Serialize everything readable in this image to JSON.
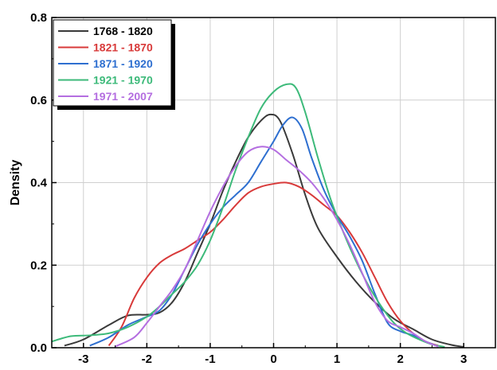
{
  "chart_data": {
    "type": "line",
    "ylabel": "Density",
    "xlim": [
      -3.5,
      3.5
    ],
    "ylim": [
      0,
      0.8
    ],
    "x_ticks": [
      "-3",
      "-2",
      "-1",
      "0",
      "1",
      "2",
      "3"
    ],
    "y_ticks": [
      "0.0",
      "0.2",
      "0.4",
      "0.6",
      "0.8"
    ],
    "grid": true,
    "legend_position": "top-left",
    "series": [
      {
        "name": "1768 - 1820",
        "color": "#3a3a3a",
        "points": [
          [
            -3.3,
            0.005
          ],
          [
            -3.0,
            0.02
          ],
          [
            -2.6,
            0.055
          ],
          [
            -2.3,
            0.078
          ],
          [
            -2.0,
            0.08
          ],
          [
            -1.8,
            0.085
          ],
          [
            -1.6,
            0.11
          ],
          [
            -1.4,
            0.16
          ],
          [
            -1.2,
            0.23
          ],
          [
            -1.0,
            0.3
          ],
          [
            -0.8,
            0.38
          ],
          [
            -0.6,
            0.45
          ],
          [
            -0.4,
            0.51
          ],
          [
            -0.2,
            0.55
          ],
          [
            -0.05,
            0.565
          ],
          [
            0.1,
            0.55
          ],
          [
            0.3,
            0.47
          ],
          [
            0.5,
            0.37
          ],
          [
            0.7,
            0.29
          ],
          [
            1.0,
            0.22
          ],
          [
            1.3,
            0.16
          ],
          [
            1.6,
            0.11
          ],
          [
            1.9,
            0.07
          ],
          [
            2.2,
            0.045
          ],
          [
            2.5,
            0.02
          ],
          [
            2.8,
            0.007
          ],
          [
            3.0,
            0.002
          ]
        ]
      },
      {
        "name": "1821 - 1870",
        "color": "#d83a3a",
        "points": [
          [
            -2.6,
            0.005
          ],
          [
            -2.4,
            0.05
          ],
          [
            -2.2,
            0.12
          ],
          [
            -2.0,
            0.17
          ],
          [
            -1.8,
            0.205
          ],
          [
            -1.6,
            0.225
          ],
          [
            -1.4,
            0.24
          ],
          [
            -1.2,
            0.26
          ],
          [
            -1.0,
            0.28
          ],
          [
            -0.8,
            0.31
          ],
          [
            -0.6,
            0.345
          ],
          [
            -0.4,
            0.375
          ],
          [
            -0.2,
            0.39
          ],
          [
            0.0,
            0.397
          ],
          [
            0.2,
            0.4
          ],
          [
            0.4,
            0.39
          ],
          [
            0.6,
            0.37
          ],
          [
            0.8,
            0.345
          ],
          [
            1.0,
            0.32
          ],
          [
            1.2,
            0.28
          ],
          [
            1.4,
            0.23
          ],
          [
            1.6,
            0.17
          ],
          [
            1.8,
            0.11
          ],
          [
            2.0,
            0.065
          ],
          [
            2.2,
            0.035
          ],
          [
            2.4,
            0.015
          ],
          [
            2.6,
            0.005
          ]
        ]
      },
      {
        "name": "1871 - 1920",
        "color": "#2e6fd0",
        "points": [
          [
            -2.9,
            0.005
          ],
          [
            -2.6,
            0.025
          ],
          [
            -2.3,
            0.055
          ],
          [
            -2.0,
            0.075
          ],
          [
            -1.8,
            0.09
          ],
          [
            -1.6,
            0.13
          ],
          [
            -1.4,
            0.19
          ],
          [
            -1.2,
            0.25
          ],
          [
            -1.0,
            0.3
          ],
          [
            -0.8,
            0.34
          ],
          [
            -0.6,
            0.37
          ],
          [
            -0.4,
            0.4
          ],
          [
            -0.2,
            0.45
          ],
          [
            0.0,
            0.5
          ],
          [
            0.15,
            0.54
          ],
          [
            0.3,
            0.558
          ],
          [
            0.45,
            0.53
          ],
          [
            0.6,
            0.46
          ],
          [
            0.8,
            0.38
          ],
          [
            1.0,
            0.32
          ],
          [
            1.2,
            0.27
          ],
          [
            1.4,
            0.21
          ],
          [
            1.6,
            0.13
          ],
          [
            1.8,
            0.06
          ],
          [
            2.0,
            0.04
          ],
          [
            2.2,
            0.03
          ],
          [
            2.4,
            0.015
          ],
          [
            2.6,
            0.003
          ]
        ]
      },
      {
        "name": "1921 - 1970",
        "color": "#3dba7a",
        "points": [
          [
            -3.5,
            0.015
          ],
          [
            -3.2,
            0.028
          ],
          [
            -2.9,
            0.03
          ],
          [
            -2.6,
            0.035
          ],
          [
            -2.3,
            0.05
          ],
          [
            -2.0,
            0.075
          ],
          [
            -1.8,
            0.1
          ],
          [
            -1.6,
            0.13
          ],
          [
            -1.4,
            0.16
          ],
          [
            -1.2,
            0.2
          ],
          [
            -1.0,
            0.26
          ],
          [
            -0.8,
            0.34
          ],
          [
            -0.6,
            0.43
          ],
          [
            -0.4,
            0.51
          ],
          [
            -0.2,
            0.58
          ],
          [
            0.0,
            0.62
          ],
          [
            0.2,
            0.638
          ],
          [
            0.35,
            0.63
          ],
          [
            0.5,
            0.57
          ],
          [
            0.7,
            0.46
          ],
          [
            0.9,
            0.36
          ],
          [
            1.1,
            0.28
          ],
          [
            1.3,
            0.21
          ],
          [
            1.5,
            0.15
          ],
          [
            1.7,
            0.1
          ],
          [
            1.9,
            0.06
          ],
          [
            2.1,
            0.035
          ],
          [
            2.3,
            0.02
          ],
          [
            2.5,
            0.008
          ],
          [
            2.7,
            0.002
          ]
        ]
      },
      {
        "name": "1971 - 2007",
        "color": "#b46ee0",
        "points": [
          [
            -2.5,
            0.003
          ],
          [
            -2.2,
            0.025
          ],
          [
            -2.0,
            0.06
          ],
          [
            -1.8,
            0.1
          ],
          [
            -1.6,
            0.14
          ],
          [
            -1.4,
            0.19
          ],
          [
            -1.2,
            0.26
          ],
          [
            -1.0,
            0.33
          ],
          [
            -0.8,
            0.39
          ],
          [
            -0.6,
            0.44
          ],
          [
            -0.4,
            0.475
          ],
          [
            -0.2,
            0.487
          ],
          [
            0.0,
            0.48
          ],
          [
            0.2,
            0.455
          ],
          [
            0.4,
            0.43
          ],
          [
            0.6,
            0.4
          ],
          [
            0.8,
            0.36
          ],
          [
            1.0,
            0.31
          ],
          [
            1.2,
            0.25
          ],
          [
            1.4,
            0.18
          ],
          [
            1.6,
            0.11
          ],
          [
            1.8,
            0.065
          ],
          [
            2.0,
            0.05
          ],
          [
            2.2,
            0.035
          ],
          [
            2.4,
            0.015
          ],
          [
            2.6,
            0.003
          ]
        ]
      }
    ]
  }
}
